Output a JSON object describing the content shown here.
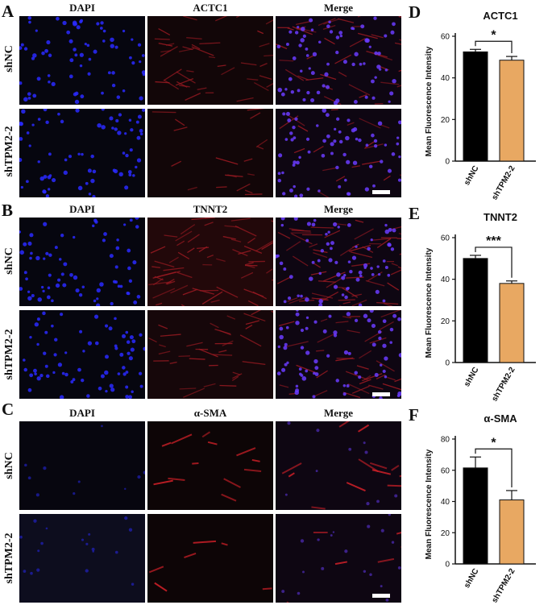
{
  "panels": {
    "A": {
      "letter": "A",
      "columns": [
        "DAPI",
        "ACTC1",
        "Merge"
      ],
      "rows": [
        "shNC",
        "shTPM2-2"
      ]
    },
    "B": {
      "letter": "B",
      "columns": [
        "DAPI",
        "TNNT2",
        "Merge"
      ],
      "rows": [
        "shNC",
        "shTPM2-2"
      ]
    },
    "C": {
      "letter": "C",
      "columns": [
        "DAPI",
        "α-SMA",
        "Merge"
      ],
      "rows": [
        "shNC",
        "shTPM2-2"
      ]
    }
  },
  "colors": {
    "dapi": "#2a2aff",
    "red_stain": "#c0181e",
    "bar_shNC": "#000000",
    "bar_shTPM2": "#e8a862"
  },
  "chart_data": [
    {
      "type": "bar",
      "letter": "D",
      "title": "ACTC1",
      "ylabel": "Mean Fluorescence Intensity",
      "categories": [
        "shNC",
        "shTPM2-2"
      ],
      "values": [
        52.5,
        48.5
      ],
      "errors": [
        1.2,
        1.8
      ],
      "ylim": [
        0,
        60
      ],
      "yticks": [
        0,
        20,
        40,
        60
      ],
      "significance": "*"
    },
    {
      "type": "bar",
      "letter": "E",
      "title": "TNNT2",
      "ylabel": "Mean Fluorescence Intensity",
      "categories": [
        "shNC",
        "shTPM2-2"
      ],
      "values": [
        50,
        38
      ],
      "errors": [
        1.5,
        1.2
      ],
      "ylim": [
        0,
        60
      ],
      "yticks": [
        0,
        20,
        40,
        60
      ],
      "significance": "***"
    },
    {
      "type": "bar",
      "letter": "F",
      "title": "α-SMA",
      "ylabel": "Mean Fluorescence Intensity",
      "categories": [
        "shNC",
        "shTPM2-2"
      ],
      "values": [
        61.5,
        41
      ],
      "errors": [
        7,
        6
      ],
      "ylim": [
        0,
        80
      ],
      "yticks": [
        0,
        20,
        40,
        60,
        80
      ],
      "significance": "*"
    }
  ]
}
